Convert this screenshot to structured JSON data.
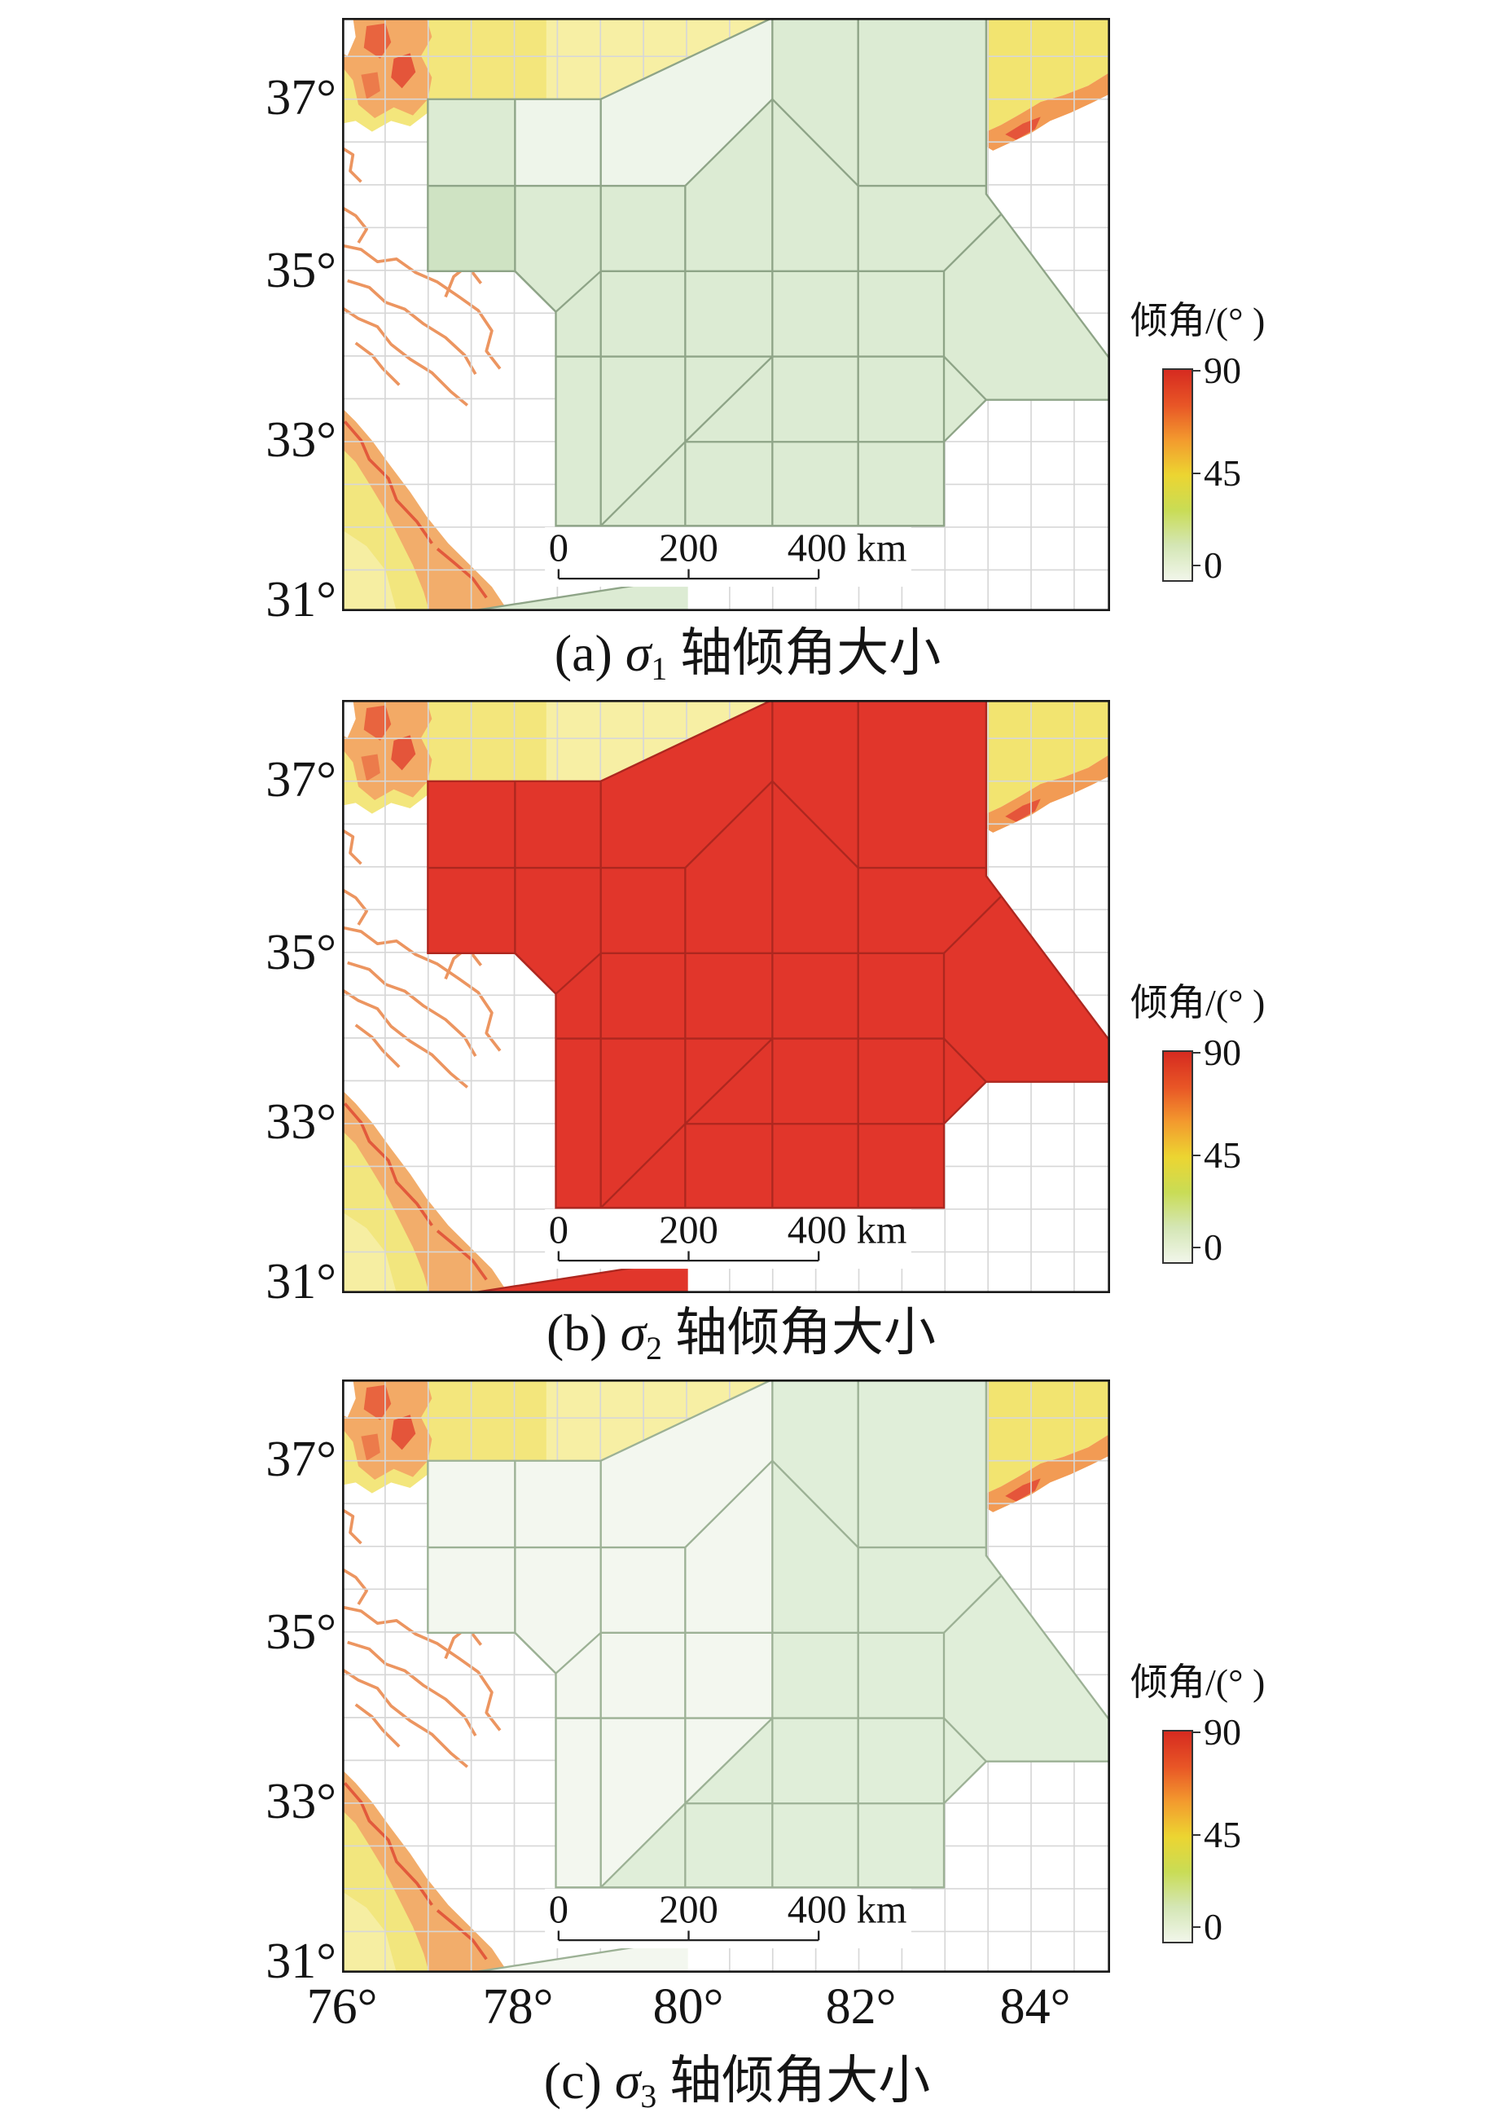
{
  "figure": {
    "axes": {
      "y_ticks": [
        "37°",
        "35°",
        "33°",
        "31°"
      ],
      "x_ticks": [
        "76°",
        "78°",
        "80°",
        "82°",
        "84°"
      ]
    },
    "colorbar": {
      "title": "倾角/(° )",
      "ticks": [
        "90",
        "45",
        "0"
      ],
      "colors": [
        "#d62a20",
        "#e85526",
        "#f39a2e",
        "#ecd531",
        "#c9dc55",
        "#d4e6b4",
        "#f1f6ea"
      ]
    },
    "scale_bar": {
      "labels": [
        "0",
        "200",
        "400 km"
      ]
    },
    "panels": [
      {
        "label": "(a)",
        "symbol": "σ",
        "subscript": "1",
        "caption": "轴倾角大小",
        "region_color": "#dcebd3",
        "edge_color": "#8ea487"
      },
      {
        "label": "(b)",
        "symbol": "σ",
        "subscript": "2",
        "caption": "轴倾角大小",
        "region_color": "#e1362b",
        "edge_color": "#ad271f"
      },
      {
        "label": "(c)",
        "symbol": "σ",
        "subscript": "3",
        "caption": "轴倾角大小",
        "region_color": "#f3f7ef",
        "edge_color": "#9cb195"
      }
    ]
  }
}
